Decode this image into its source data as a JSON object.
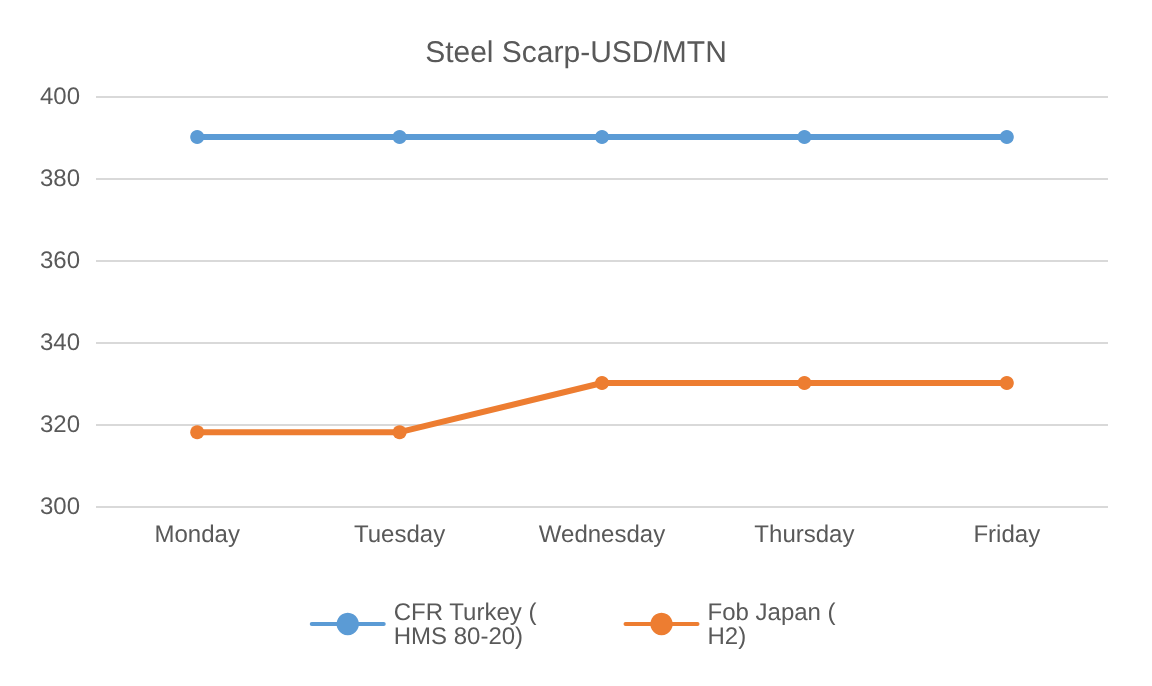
{
  "chart_data": {
    "type": "line",
    "title": "Steel Scarp-USD/MTN",
    "categories": [
      "Monday",
      "Tuesday",
      "Wednesday",
      "Thursday",
      "Friday"
    ],
    "series": [
      {
        "name": "CFR Turkey ( HMS 80-20)",
        "color": "#5b9bd5",
        "values": [
          390,
          390,
          390,
          390,
          390
        ]
      },
      {
        "name": "Fob Japan ( H2)",
        "color": "#ed7d31",
        "values": [
          318,
          318,
          330,
          330,
          330
        ]
      }
    ],
    "ylim": [
      300,
      400
    ],
    "yticks": [
      300,
      320,
      340,
      360,
      380,
      400
    ],
    "grid": "y",
    "legend": "bottom",
    "marker": "circle",
    "line_style": "solid"
  }
}
